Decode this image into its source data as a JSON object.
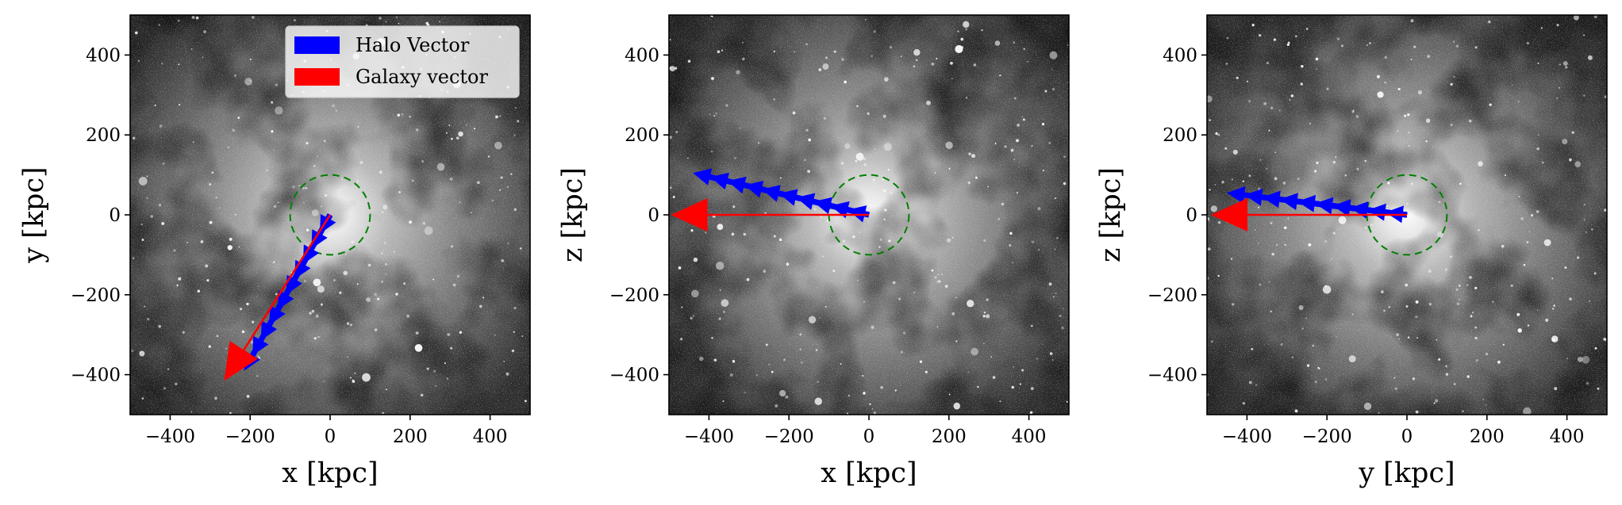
{
  "legend": {
    "items": [
      {
        "label": "Halo Vector",
        "color": "#0000ff"
      },
      {
        "label": "Galaxy vector",
        "color": "#ff0000"
      }
    ]
  },
  "chart_data": [
    {
      "type": "quiver",
      "background": "grayscale density projection",
      "xlabel": "x [kpc]",
      "ylabel": "y [kpc]",
      "xlim": [
        -500,
        500
      ],
      "ylim": [
        -500,
        500
      ],
      "xticks": [
        -400,
        -200,
        0,
        200,
        400
      ],
      "yticks": [
        -400,
        -200,
        0,
        200,
        400
      ],
      "circle": {
        "center": [
          0,
          0
        ],
        "radius": 100,
        "color": "#008000",
        "style": "dashed"
      },
      "halo_vectors": {
        "color": "#0000ff",
        "count": 10,
        "start": [
          0,
          0
        ],
        "end": [
          -215,
          -390
        ]
      },
      "galaxy_vector": {
        "color": "#ff0000",
        "start": [
          0,
          0
        ],
        "end": [
          -265,
          -415
        ]
      },
      "legend": true
    },
    {
      "type": "quiver",
      "background": "grayscale density projection",
      "xlabel": "x [kpc]",
      "ylabel": "z [kpc]",
      "xlim": [
        -500,
        500
      ],
      "ylim": [
        -500,
        500
      ],
      "xticks": [
        -400,
        -200,
        0,
        200,
        400
      ],
      "yticks": [
        -400,
        -200,
        0,
        200,
        400
      ],
      "circle": {
        "center": [
          0,
          0
        ],
        "radius": 100,
        "color": "#008000",
        "style": "dashed"
      },
      "halo_vectors": {
        "color": "#0000ff",
        "count": 10,
        "start": [
          0,
          0
        ],
        "end": [
          -440,
          105
        ]
      },
      "galaxy_vector": {
        "color": "#ff0000",
        "start": [
          0,
          0
        ],
        "end": [
          -495,
          0
        ]
      },
      "legend": false
    },
    {
      "type": "quiver",
      "background": "grayscale density projection",
      "xlabel": "y [kpc]",
      "ylabel": "z [kpc]",
      "xlim": [
        -500,
        500
      ],
      "ylim": [
        -500,
        500
      ],
      "xticks": [
        -400,
        -200,
        0,
        200,
        400
      ],
      "yticks": [
        -400,
        -200,
        0,
        200,
        400
      ],
      "circle": {
        "center": [
          0,
          0
        ],
        "radius": 100,
        "color": "#008000",
        "style": "dashed"
      },
      "halo_vectors": {
        "color": "#0000ff",
        "count": 10,
        "start": [
          0,
          0
        ],
        "end": [
          -450,
          55
        ]
      },
      "galaxy_vector": {
        "color": "#ff0000",
        "start": [
          0,
          0
        ],
        "end": [
          -490,
          0
        ]
      },
      "legend": false
    }
  ]
}
